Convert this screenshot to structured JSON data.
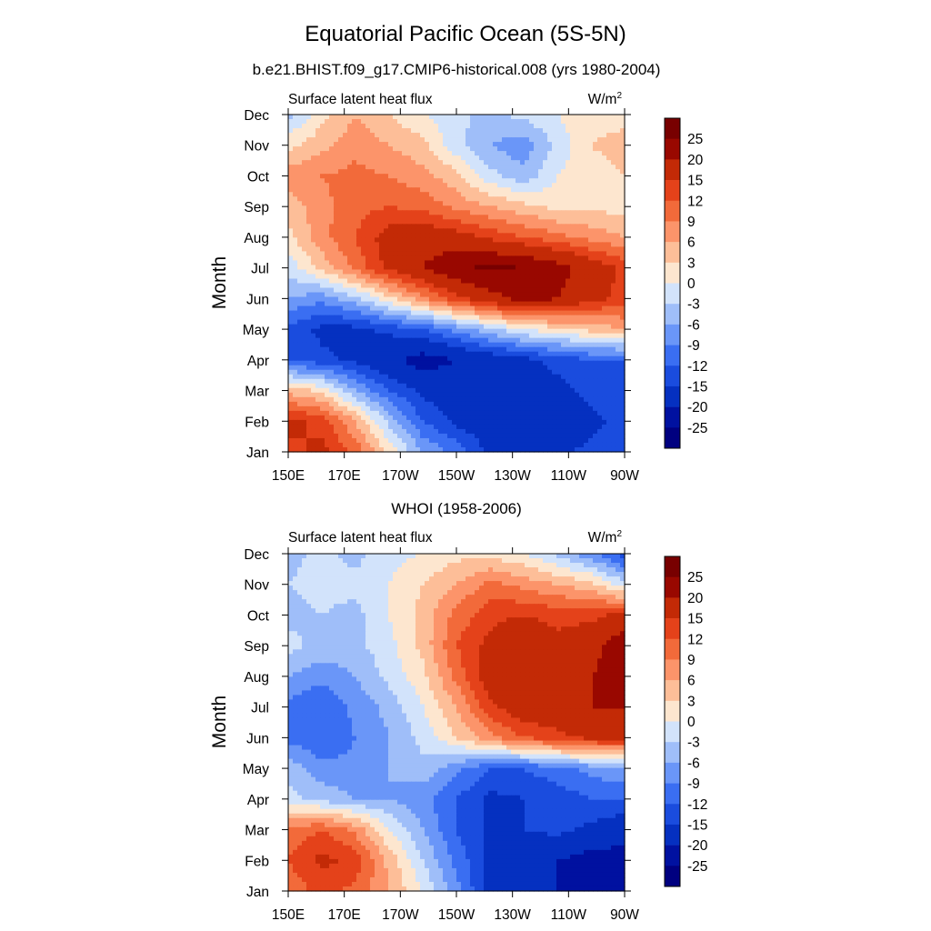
{
  "figure": {
    "title": "Equatorial Pacific Ocean (5S-5N)",
    "subtitle": "b.e21.BHIST.f09_g17.CMIP6-historical.008 (yrs 1980-2004)"
  },
  "chart_data": [
    {
      "type": "heatmap",
      "title": "",
      "left_label": "Surface latent heat flux",
      "units": "W/m",
      "units_sup": "2",
      "ylabel": "Month",
      "x_ticks": [
        "150E",
        "170E",
        "170W",
        "150W",
        "130W",
        "110W",
        "90W"
      ],
      "y_ticks": [
        "Jan",
        "Feb",
        "Mar",
        "Apr",
        "May",
        "Jun",
        "Jul",
        "Aug",
        "Sep",
        "Oct",
        "Nov",
        "Dec"
      ],
      "levels": [
        -25,
        -20,
        -15,
        -12,
        -9,
        -6,
        -3,
        0,
        3,
        6,
        9,
        12,
        15,
        20,
        25
      ],
      "colorbar_labels": [
        "25",
        "20",
        "15",
        "12",
        "9",
        "6",
        "3",
        "0",
        "-3",
        "-6",
        "-9",
        "-12",
        "-15",
        "-20",
        "-25"
      ],
      "colors": [
        "#000080",
        "#0011a0",
        "#0530c0",
        "#1a4cde",
        "#3a6ef2",
        "#6a96f8",
        "#9fbef9",
        "#d2e3fb",
        "#fde6cf",
        "#fdbe98",
        "#fc946a",
        "#f26a3a",
        "#e4421a",
        "#c32a06",
        "#990800",
        "#780000"
      ],
      "rows_x": [
        150,
        162,
        174,
        186,
        198,
        210,
        222,
        234,
        246,
        258,
        270
      ],
      "rows": [
        [
          14,
          16,
          11,
          2,
          -6,
          -10,
          -16,
          -18,
          -16,
          -14,
          -12
        ],
        [
          16,
          14,
          6,
          -4,
          -12,
          -16,
          -18,
          -19,
          -18,
          -16,
          -14
        ],
        [
          5,
          2,
          -6,
          -12,
          -16,
          -18,
          -19,
          -18,
          -16,
          -14,
          -12
        ],
        [
          -12,
          -14,
          -16,
          -19,
          -22,
          -20,
          -18,
          -16,
          -14,
          -12,
          -12
        ],
        [
          -13,
          -16,
          -16,
          -14,
          -12,
          -8,
          -4,
          0,
          2,
          4,
          6
        ],
        [
          -6,
          -8,
          -4,
          2,
          8,
          14,
          18,
          22,
          20,
          16,
          14
        ],
        [
          -2,
          4,
          10,
          16,
          20,
          24,
          26,
          25,
          22,
          18,
          14
        ],
        [
          2,
          8,
          12,
          17,
          18,
          17,
          14,
          12,
          10,
          8,
          6
        ],
        [
          4,
          8,
          11,
          12,
          11,
          8,
          6,
          4,
          2,
          2,
          2
        ],
        [
          8,
          9,
          10,
          9,
          7,
          4,
          -2,
          -5,
          0,
          2,
          3
        ],
        [
          2,
          5,
          8,
          6,
          4,
          -2,
          -6,
          -8,
          -2,
          3,
          4
        ],
        [
          -4,
          2,
          6,
          3,
          0,
          -2,
          -4,
          -2,
          0,
          2,
          2
        ]
      ]
    },
    {
      "type": "heatmap",
      "title": "WHOI (1958-2006)",
      "left_label": "Surface latent heat flux",
      "units": "W/m",
      "units_sup": "2",
      "ylabel": "Month",
      "x_ticks": [
        "150E",
        "170E",
        "170W",
        "150W",
        "130W",
        "110W",
        "90W"
      ],
      "y_ticks": [
        "Jan",
        "Feb",
        "Mar",
        "Apr",
        "May",
        "Jun",
        "Jul",
        "Aug",
        "Sep",
        "Oct",
        "Nov",
        "Dec"
      ],
      "levels": [
        -25,
        -20,
        -15,
        -12,
        -9,
        -6,
        -3,
        0,
        3,
        6,
        9,
        12,
        15,
        20,
        25
      ],
      "colorbar_labels": [
        "25",
        "20",
        "15",
        "12",
        "9",
        "6",
        "3",
        "0",
        "-3",
        "-6",
        "-9",
        "-12",
        "-15",
        "-20",
        "-25"
      ],
      "colors": [
        "#000080",
        "#0011a0",
        "#0530c0",
        "#1a4cde",
        "#3a6ef2",
        "#6a96f8",
        "#9fbef9",
        "#d2e3fb",
        "#fde6cf",
        "#fdbe98",
        "#fc946a",
        "#f26a3a",
        "#e4421a",
        "#c32a06",
        "#990800",
        "#780000"
      ],
      "rows_x": [
        150,
        162,
        174,
        186,
        198,
        210,
        222,
        234,
        246,
        258,
        270
      ],
      "rows": [
        [
          10,
          13,
          11,
          6,
          0,
          -8,
          -16,
          -18,
          -20,
          -22,
          -24
        ],
        [
          12,
          16,
          14,
          5,
          -3,
          -10,
          -16,
          -18,
          -20,
          -22,
          -22
        ],
        [
          10,
          12,
          8,
          0,
          -6,
          -12,
          -16,
          -15,
          -14,
          -16,
          -18
        ],
        [
          -2,
          -4,
          -6,
          -6,
          -8,
          -12,
          -16,
          -15,
          -14,
          -12,
          -12
        ],
        [
          -4,
          -8,
          -8,
          -6,
          -4,
          -8,
          -12,
          -12,
          -10,
          -8,
          -6
        ],
        [
          -10,
          -12,
          -9,
          -6,
          -2,
          3,
          8,
          12,
          14,
          16,
          16
        ],
        [
          -10,
          -12,
          -8,
          -5,
          0,
          6,
          14,
          18,
          18,
          20,
          20
        ],
        [
          -6,
          -8,
          -6,
          -2,
          2,
          10,
          18,
          20,
          18,
          20,
          22
        ],
        [
          -2,
          -4,
          -4,
          -1,
          4,
          12,
          16,
          19,
          16,
          18,
          24
        ],
        [
          -4,
          -3,
          -4,
          0,
          4,
          10,
          14,
          15,
          14,
          14,
          16
        ],
        [
          -3,
          -2,
          -2,
          0,
          3,
          6,
          10,
          8,
          6,
          4,
          -2
        ],
        [
          -4,
          -2,
          -4,
          -1,
          0,
          2,
          2,
          0,
          -4,
          -8,
          -14
        ]
      ]
    }
  ]
}
